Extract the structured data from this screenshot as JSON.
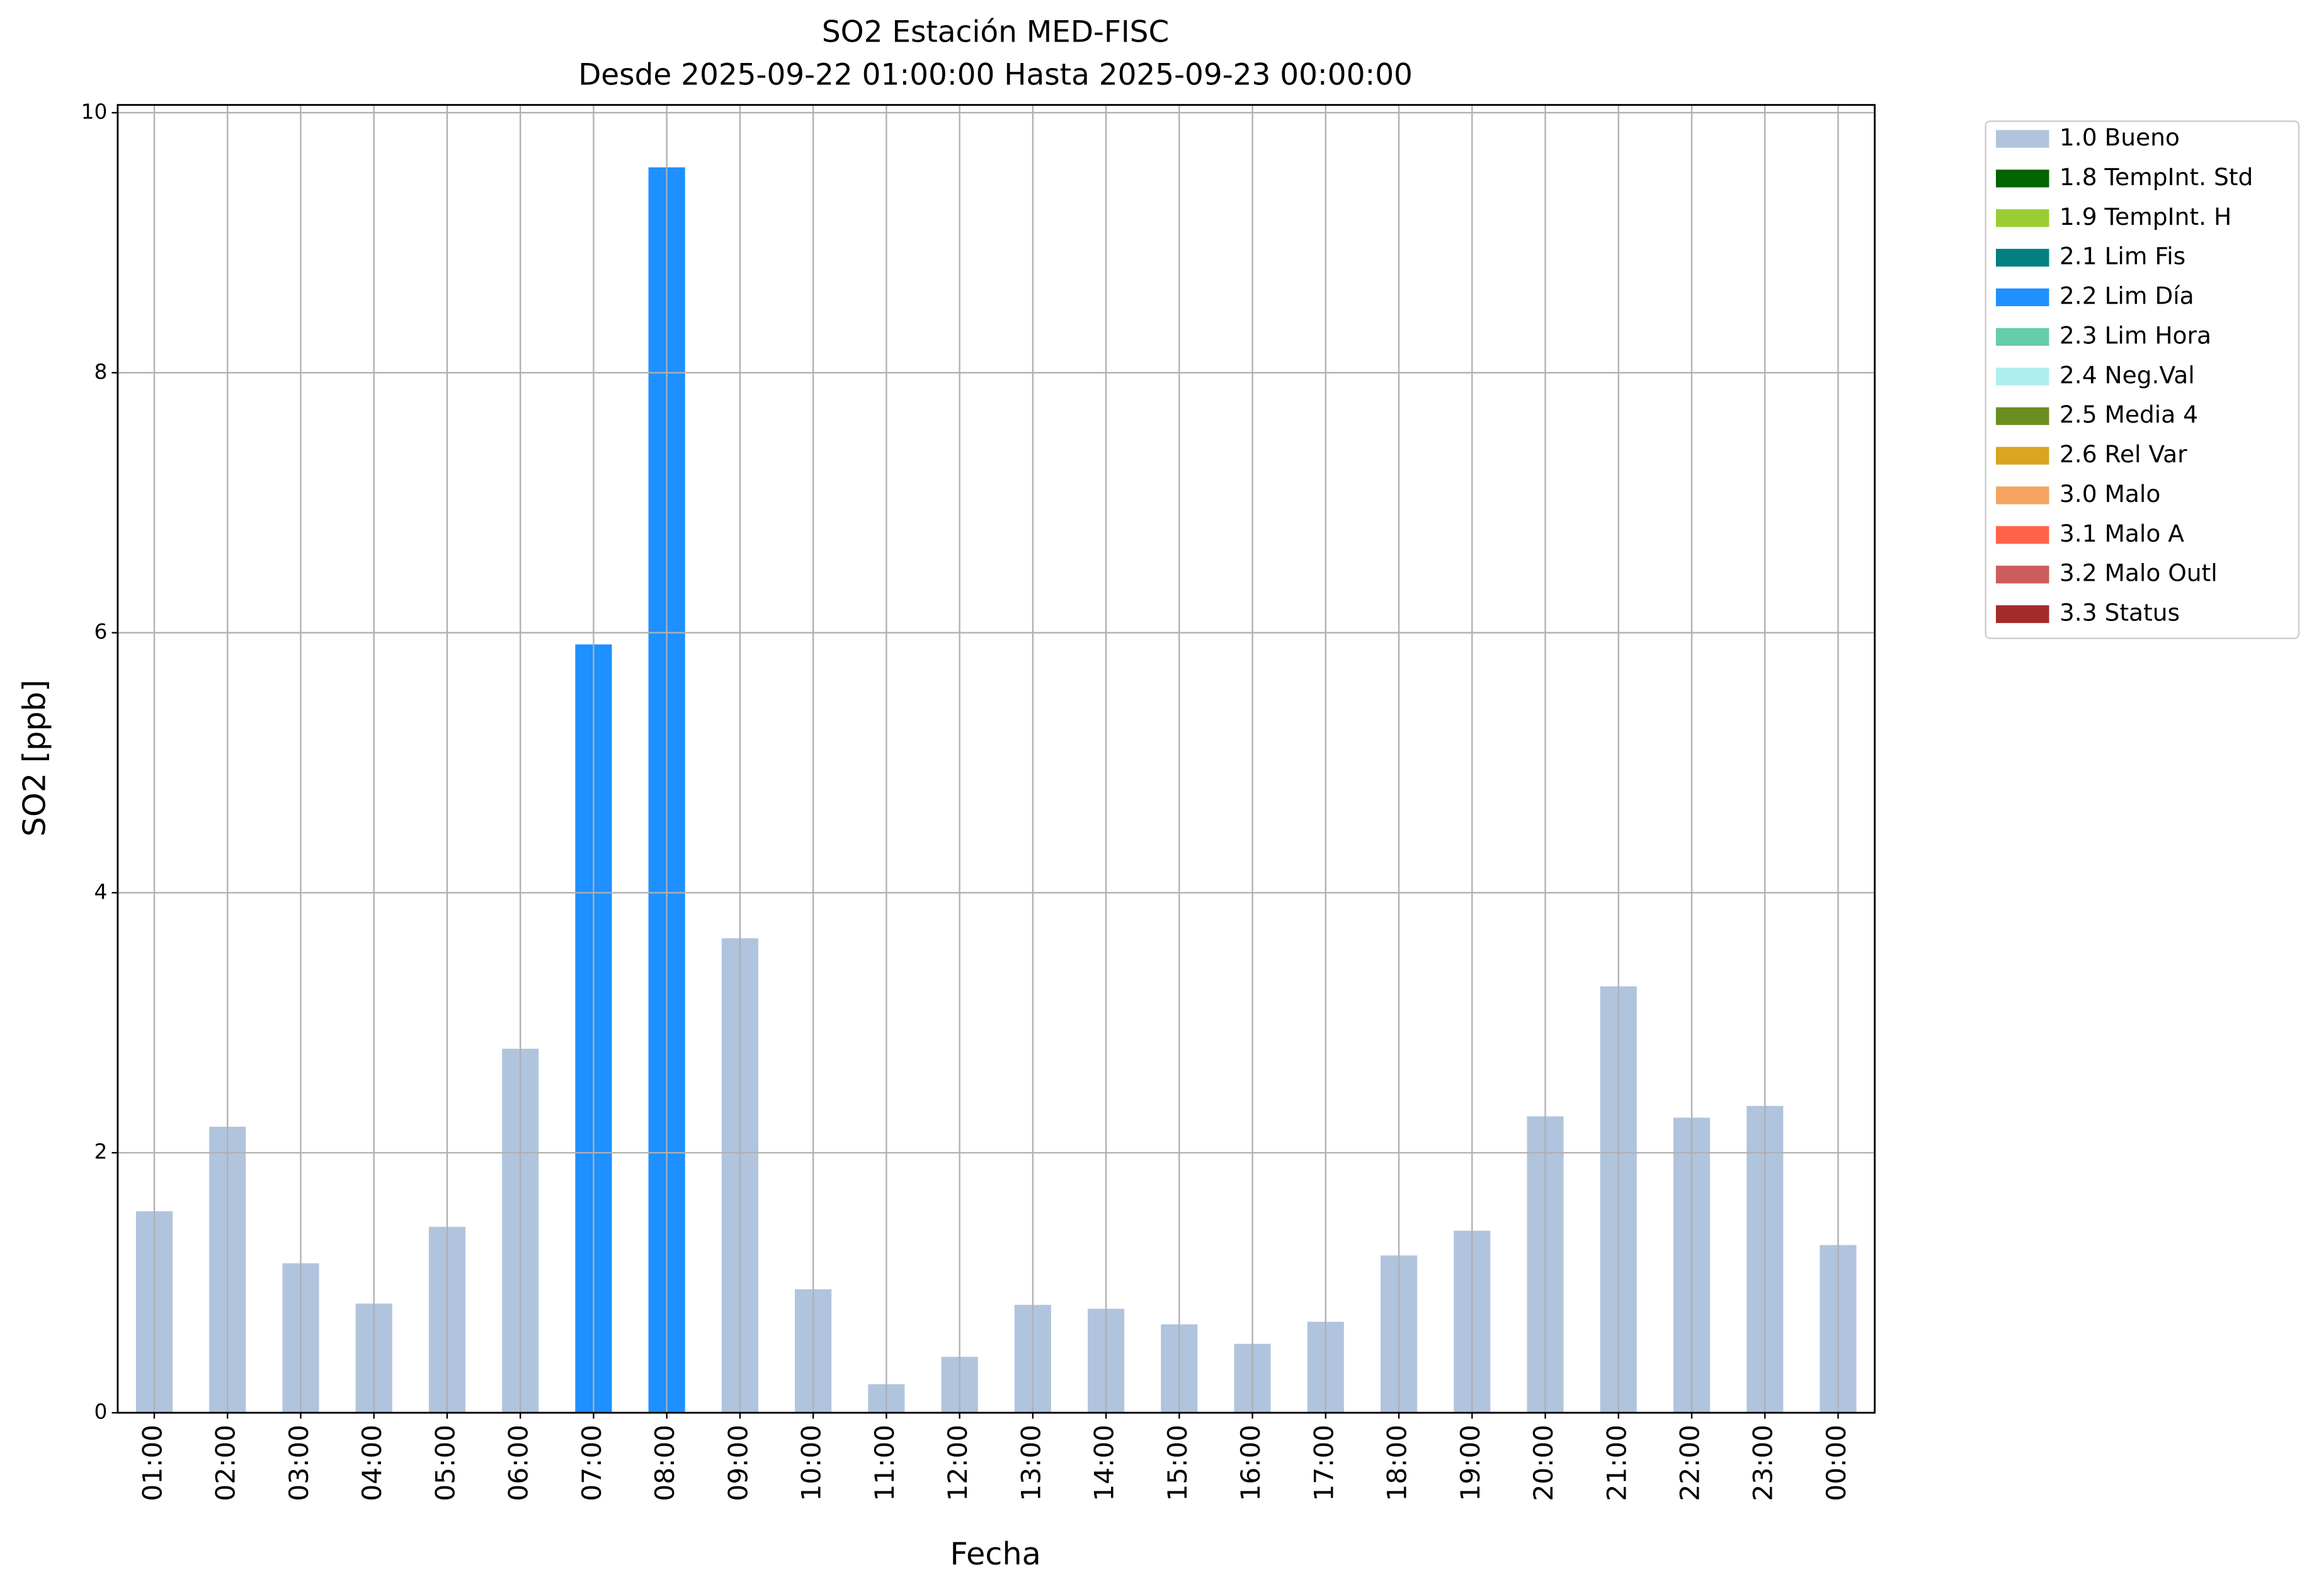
{
  "chart_data": {
    "type": "stacked_bar",
    "title": "SO2 Estación MED-FISC",
    "subtitle": "Desde 2025-09-22 01:00:00 Hasta 2025-09-23 00:00:00",
    "x_label": "Fecha",
    "y_label": "SO2 [ppb]",
    "categories": [
      "01:00",
      "02:00",
      "03:00",
      "04:00",
      "05:00",
      "06:00",
      "07:00",
      "08:00",
      "09:00",
      "10:00",
      "11:00",
      "12:00",
      "13:00",
      "14:00",
      "15:00",
      "16:00",
      "17:00",
      "18:00",
      "19:00",
      "20:00",
      "21:00",
      "22:00",
      "23:00",
      "00:00"
    ],
    "ylim": [
      0,
      10.06
    ],
    "yticks": [
      0,
      2,
      4,
      6,
      8,
      10
    ],
    "grid": true,
    "legend": "outside-upper-right",
    "series": [
      {
        "name": "1.0 Bueno",
        "color": "#b0c4de",
        "values": [
          1.55,
          2.2,
          1.15,
          0.84,
          1.43,
          2.8,
          null,
          null,
          3.65,
          0.95,
          0.22,
          0.43,
          0.83,
          0.8,
          0.68,
          0.53,
          0.7,
          1.21,
          1.4,
          2.28,
          3.28,
          2.27,
          2.36,
          1.29
        ]
      },
      {
        "name": "1.8 TempInt. Std",
        "color": "#006400",
        "values": [
          null,
          null,
          null,
          null,
          null,
          null,
          null,
          null,
          null,
          null,
          null,
          null,
          null,
          null,
          null,
          null,
          null,
          null,
          null,
          null,
          null,
          null,
          null,
          null
        ]
      },
      {
        "name": "1.9 TempInt. H",
        "color": "#9acd32",
        "values": [
          null,
          null,
          null,
          null,
          null,
          null,
          null,
          null,
          null,
          null,
          null,
          null,
          null,
          null,
          null,
          null,
          null,
          null,
          null,
          null,
          null,
          null,
          null,
          null
        ]
      },
      {
        "name": "2.1 Lim Fis",
        "color": "#008080",
        "values": [
          null,
          null,
          null,
          null,
          null,
          null,
          null,
          null,
          null,
          null,
          null,
          null,
          null,
          null,
          null,
          null,
          null,
          null,
          null,
          null,
          null,
          null,
          null,
          null
        ]
      },
      {
        "name": "2.2 Lim Día",
        "color": "#1e90ff",
        "values": [
          null,
          null,
          null,
          null,
          null,
          null,
          5.91,
          9.58,
          null,
          null,
          null,
          null,
          null,
          null,
          null,
          null,
          null,
          null,
          null,
          null,
          null,
          null,
          null,
          null
        ]
      },
      {
        "name": "2.3 Lim Hora",
        "color": "#66cdaa",
        "values": [
          null,
          null,
          null,
          null,
          null,
          null,
          null,
          null,
          null,
          null,
          null,
          null,
          null,
          null,
          null,
          null,
          null,
          null,
          null,
          null,
          null,
          null,
          null,
          null
        ]
      },
      {
        "name": "2.4 Neg.Val",
        "color": "#afeeee",
        "values": [
          null,
          null,
          null,
          null,
          null,
          null,
          null,
          null,
          null,
          null,
          null,
          null,
          null,
          null,
          null,
          null,
          null,
          null,
          null,
          null,
          null,
          null,
          null,
          null
        ]
      },
      {
        "name": "2.5 Media 4",
        "color": "#6b8e23",
        "values": [
          null,
          null,
          null,
          null,
          null,
          null,
          null,
          null,
          null,
          null,
          null,
          null,
          null,
          null,
          null,
          null,
          null,
          null,
          null,
          null,
          null,
          null,
          null,
          null
        ]
      },
      {
        "name": "2.6 Rel Var",
        "color": "#daa520",
        "values": [
          null,
          null,
          null,
          null,
          null,
          null,
          null,
          null,
          null,
          null,
          null,
          null,
          null,
          null,
          null,
          null,
          null,
          null,
          null,
          null,
          null,
          null,
          null,
          null
        ]
      },
      {
        "name": "3.0 Malo",
        "color": "#f4a460",
        "values": [
          null,
          null,
          null,
          null,
          null,
          null,
          null,
          null,
          null,
          null,
          null,
          null,
          null,
          null,
          null,
          null,
          null,
          null,
          null,
          null,
          null,
          null,
          null,
          null
        ]
      },
      {
        "name": "3.1 Malo A",
        "color": "#ff6347",
        "values": [
          null,
          null,
          null,
          null,
          null,
          null,
          null,
          null,
          null,
          null,
          null,
          null,
          null,
          null,
          null,
          null,
          null,
          null,
          null,
          null,
          null,
          null,
          null,
          null
        ]
      },
      {
        "name": "3.2 Malo Outl",
        "color": "#cd5c5c",
        "values": [
          null,
          null,
          null,
          null,
          null,
          null,
          null,
          null,
          null,
          null,
          null,
          null,
          null,
          null,
          null,
          null,
          null,
          null,
          null,
          null,
          null,
          null,
          null,
          null
        ]
      },
      {
        "name": "3.3 Status",
        "color": "#a52a2a",
        "values": [
          null,
          null,
          null,
          null,
          null,
          null,
          null,
          null,
          null,
          null,
          null,
          null,
          null,
          null,
          null,
          null,
          null,
          null,
          null,
          null,
          null,
          null,
          null,
          null
        ]
      }
    ]
  }
}
